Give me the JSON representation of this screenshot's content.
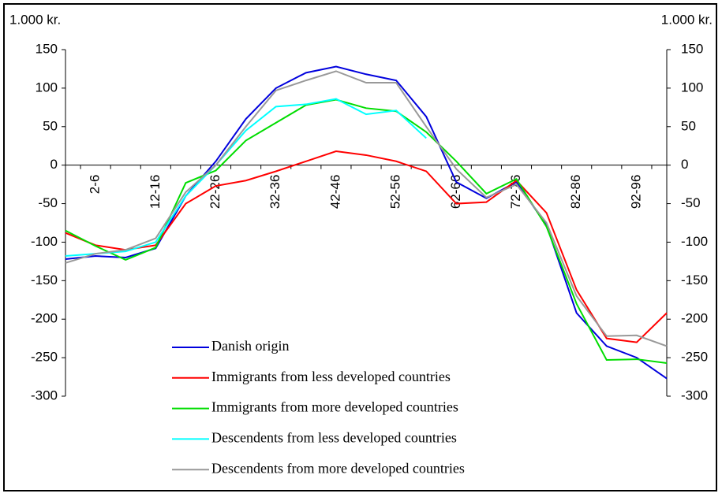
{
  "chart_data": {
    "type": "line",
    "y_label": "1.000 kr.",
    "y2_label": "1.000 kr.",
    "categories": [
      null,
      "2-6",
      null,
      "12-16",
      null,
      "22-26",
      null,
      "32-36",
      null,
      "42-46",
      null,
      "52-56",
      null,
      "62-66",
      null,
      "72-76",
      null,
      "82-86",
      null,
      "92-96",
      null
    ],
    "ylim": [
      -300,
      150
    ],
    "yticks": [
      150,
      100,
      50,
      0,
      -50,
      -100,
      -150,
      -200,
      -250,
      -300
    ],
    "y2lim": [
      -300,
      150
    ],
    "y2ticks": [
      150,
      100,
      50,
      0,
      -50,
      -100,
      -150,
      -200,
      -250,
      -300
    ],
    "series": [
      {
        "name": "Danish origin",
        "color": "#0000dd",
        "values": [
          -122,
          -118,
          -120,
          -108,
          -40,
          5,
          60,
          100,
          120,
          128,
          118,
          110,
          63,
          -22,
          -43,
          -22,
          -78,
          -192,
          -235,
          -250,
          -277
        ]
      },
      {
        "name": "Immigrants from less developed countries",
        "color": "#ff0000",
        "values": [
          -88,
          -104,
          -110,
          -104,
          -50,
          -27,
          -20,
          -8,
          5,
          18,
          13,
          5,
          -8,
          -50,
          -48,
          -20,
          -62,
          -162,
          -225,
          -230,
          -192
        ]
      },
      {
        "name": "Immigrants from more developed countries",
        "color": "#00dd00",
        "values": [
          -85,
          -105,
          -123,
          -107,
          -23,
          -7,
          32,
          55,
          78,
          85,
          74,
          70,
          43,
          5,
          -37,
          -18,
          -80,
          -180,
          -253,
          -252,
          -257
        ]
      },
      {
        "name": "Descendents from less developed countries",
        "color": "#00ffff",
        "values": [
          -118,
          -115,
          -112,
          -100,
          -40,
          0,
          45,
          76,
          79,
          86,
          66,
          71,
          35,
          null,
          null,
          null,
          null,
          null,
          null,
          null,
          null
        ]
      },
      {
        "name": "Descendents from more developed countries",
        "color": "#999999",
        "values": [
          -127,
          -115,
          -110,
          -95,
          -35,
          0,
          50,
          97,
          110,
          122,
          107,
          107,
          50,
          -5,
          -42,
          -25,
          -75,
          -170,
          -222,
          -221,
          -235
        ]
      }
    ]
  }
}
